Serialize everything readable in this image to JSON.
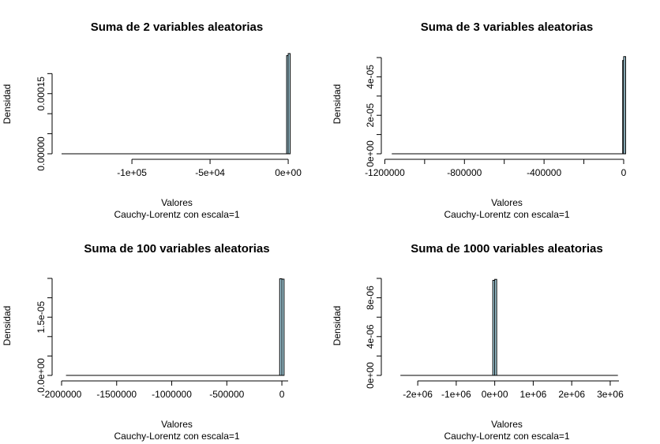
{
  "colors": {
    "bar_fill": "#add8e6",
    "bar_stroke": "#000000",
    "axis": "#000000"
  },
  "chart_data": [
    {
      "type": "bar",
      "title": "Suma de 2 variables aleatorias",
      "xlabel": "Valores",
      "subtitle": "Cauchy-Lorentz con escala=1",
      "ylabel": "Densidad",
      "xlim": [
        -145000,
        3000
      ],
      "ylim": [
        0,
        0.00024
      ],
      "x_ticks": [
        -100000,
        -50000,
        0
      ],
      "x_tick_labels": [
        "-1e+05",
        "-5e+04",
        "0e+00"
      ],
      "y_ticks": [
        0,
        5e-05,
        0.0001,
        0.00015,
        0.0002
      ],
      "y_tick_labels": [
        "0.00000",
        "",
        "",
        "0.00015",
        ""
      ],
      "bins": [
        {
          "x0": -1000,
          "x1": 0,
          "density": 0.000245
        },
        {
          "x0": 0,
          "x1": 1000,
          "density": 0.00025
        }
      ],
      "baseline": [
        -145000,
        1000
      ]
    },
    {
      "type": "bar",
      "title": "Suma de 3 variables aleatorias",
      "xlabel": "Valores",
      "subtitle": "Cauchy-Lorentz con escala=1",
      "ylabel": "Densidad",
      "xlim": [
        -1170000,
        8000
      ],
      "ylim": [
        0,
        5e-05
      ],
      "x_ticks": [
        -1200000,
        -1000000,
        -800000,
        -600000,
        -400000,
        -200000,
        0
      ],
      "x_tick_labels": [
        "-1200000",
        "",
        "-800000",
        "",
        "-400000",
        "",
        "0"
      ],
      "y_ticks": [
        0,
        1e-05,
        2e-05,
        3e-05,
        4e-05,
        5e-05
      ],
      "y_tick_labels": [
        "0e+00",
        "",
        "2e-05",
        "",
        "4e-05",
        ""
      ],
      "bins": [
        {
          "x0": -5000,
          "x1": 0,
          "density": 4.85e-05
        },
        {
          "x0": 0,
          "x1": 5000,
          "density": 5.05e-05
        }
      ],
      "baseline": [
        -1165000,
        5000
      ]
    },
    {
      "type": "bar",
      "title": "Suma de 100 variables aleatorias",
      "xlabel": "Valores",
      "subtitle": "Cauchy-Lorentz con escala=1",
      "ylabel": "Densidad",
      "xlim": [
        -2000000,
        100000
      ],
      "ylim": [
        0,
        2.5e-05
      ],
      "x_ticks": [
        -2000000,
        -1500000,
        -1000000,
        -500000,
        0
      ],
      "x_tick_labels": [
        "-2000000",
        "-1500000",
        "-1000000",
        "-500000",
        "0"
      ],
      "y_ticks": [
        0,
        5e-06,
        1e-05,
        1.5e-05,
        2e-05,
        2.5e-05
      ],
      "y_tick_labels": [
        "0.0e+00",
        "",
        "",
        "1.5e-05",
        "",
        ""
      ],
      "bins": [
        {
          "x0": -20000,
          "x1": 0,
          "density": 2.49e-05
        },
        {
          "x0": 0,
          "x1": 20000,
          "density": 2.48e-05
        }
      ],
      "baseline": [
        -1960000,
        20000
      ]
    },
    {
      "type": "bar",
      "title": "Suma de 1000 variables aleatorias",
      "xlabel": "Valores",
      "subtitle": "Cauchy-Lorentz con escala=1",
      "ylabel": "Densidad",
      "xlim": [
        -2700000,
        3350000
      ],
      "ylim": [
        0,
        1e-05
      ],
      "x_ticks": [
        -2000000,
        -1000000,
        0,
        1000000,
        2000000,
        3000000
      ],
      "x_tick_labels": [
        "-2e+06",
        "-1e+06",
        "0e+00",
        "1e+06",
        "2e+06",
        "3e+06"
      ],
      "y_ticks": [
        0,
        2e-06,
        4e-06,
        6e-06,
        8e-06,
        1e-05
      ],
      "y_tick_labels": [
        "0e+00",
        "",
        "4e-06",
        "",
        "8e-06",
        ""
      ],
      "bins": [
        {
          "x0": -50000,
          "x1": 0,
          "density": 9.8e-06
        },
        {
          "x0": 0,
          "x1": 50000,
          "density": 9.9e-06
        }
      ],
      "baseline": [
        -2450000,
        3200000
      ]
    }
  ]
}
